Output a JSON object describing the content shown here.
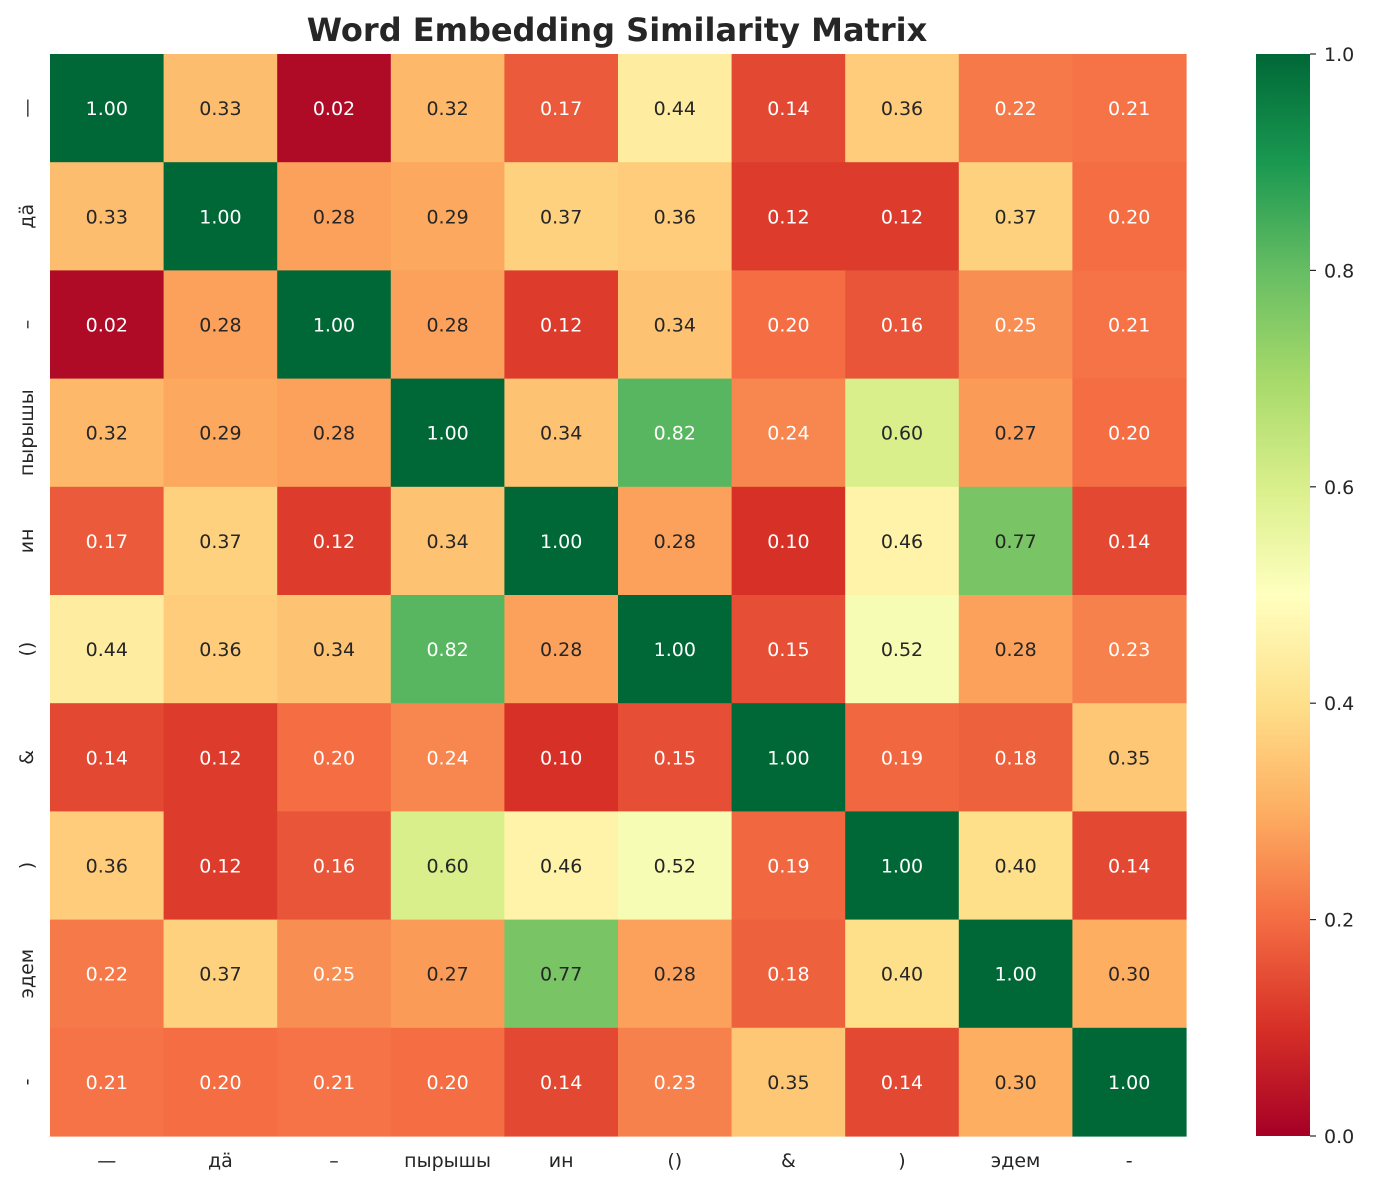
{
  "chart_data": {
    "type": "heatmap",
    "title": "Word Embedding Similarity Matrix",
    "xlabel": "",
    "ylabel": "",
    "labels": [
      "—",
      "дӓ",
      "–",
      "пырышы",
      "ин",
      "()",
      "&",
      ")",
      "эдем",
      "-"
    ],
    "values": [
      [
        1.0,
        0.33,
        0.02,
        0.32,
        0.17,
        0.44,
        0.14,
        0.36,
        0.22,
        0.21
      ],
      [
        0.33,
        1.0,
        0.28,
        0.29,
        0.37,
        0.36,
        0.12,
        0.12,
        0.37,
        0.2
      ],
      [
        0.02,
        0.28,
        1.0,
        0.28,
        0.12,
        0.34,
        0.2,
        0.16,
        0.25,
        0.21
      ],
      [
        0.32,
        0.29,
        0.28,
        1.0,
        0.34,
        0.82,
        0.24,
        0.6,
        0.27,
        0.2
      ],
      [
        0.17,
        0.37,
        0.12,
        0.34,
        1.0,
        0.28,
        0.1,
        0.46,
        0.77,
        0.14
      ],
      [
        0.44,
        0.36,
        0.34,
        0.82,
        0.28,
        1.0,
        0.15,
        0.52,
        0.28,
        0.23
      ],
      [
        0.14,
        0.12,
        0.2,
        0.24,
        0.1,
        0.15,
        1.0,
        0.19,
        0.18,
        0.35
      ],
      [
        0.36,
        0.12,
        0.16,
        0.6,
        0.46,
        0.52,
        0.19,
        1.0,
        0.4,
        0.14
      ],
      [
        0.22,
        0.37,
        0.25,
        0.27,
        0.77,
        0.28,
        0.18,
        0.4,
        1.0,
        0.3
      ],
      [
        0.21,
        0.2,
        0.21,
        0.2,
        0.14,
        0.23,
        0.35,
        0.14,
        0.3,
        1.0
      ]
    ],
    "value_format": "2 decimals",
    "colormap": "RdYlGn",
    "vmin": 0.0,
    "vmax": 1.0,
    "colorbar_ticks": [
      "0.0",
      "0.2",
      "0.4",
      "0.6",
      "0.8",
      "1.0"
    ],
    "grid": false,
    "legend": "colorbar right"
  }
}
